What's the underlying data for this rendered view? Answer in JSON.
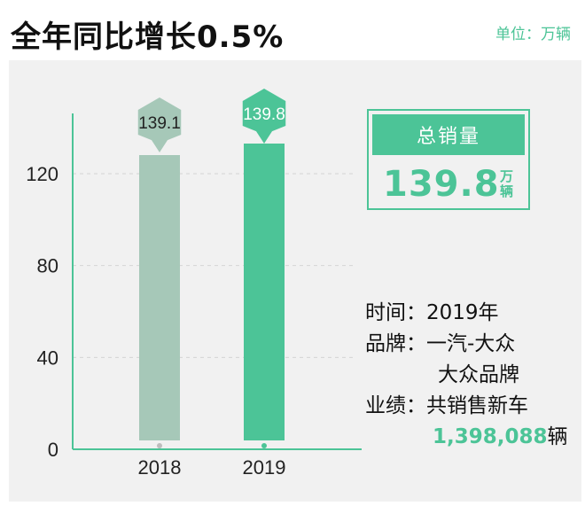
{
  "header": {
    "title": "全年同比增长0.5%",
    "unit": "单位：万辆"
  },
  "total": {
    "label": "总销量",
    "value": "139.8",
    "unit_line1": "万",
    "unit_line2": "辆"
  },
  "info": {
    "time_label": "时间：",
    "time_value": "2019年",
    "brand_label": "品牌：",
    "brand_value1": "一汽-大众",
    "brand_value2": "大众品牌",
    "result_label": "业绩：",
    "result_value": "共销售新车",
    "sales_number": "1,398,088",
    "sales_unit": "辆"
  },
  "colors": {
    "bar_2018": "#a6c8b8",
    "bar_2019": "#4cc497",
    "accent": "#4cc497"
  },
  "chart_data": {
    "type": "bar",
    "categories": [
      "2018",
      "2019"
    ],
    "values": [
      139.1,
      139.8
    ],
    "value_labels": [
      "139.1",
      "139.8"
    ],
    "title": "全年同比增长0.5%",
    "xlabel": "",
    "ylabel": "",
    "yticks": [
      0,
      40,
      80,
      120
    ],
    "ylim": [
      0,
      150
    ],
    "grid": true
  }
}
